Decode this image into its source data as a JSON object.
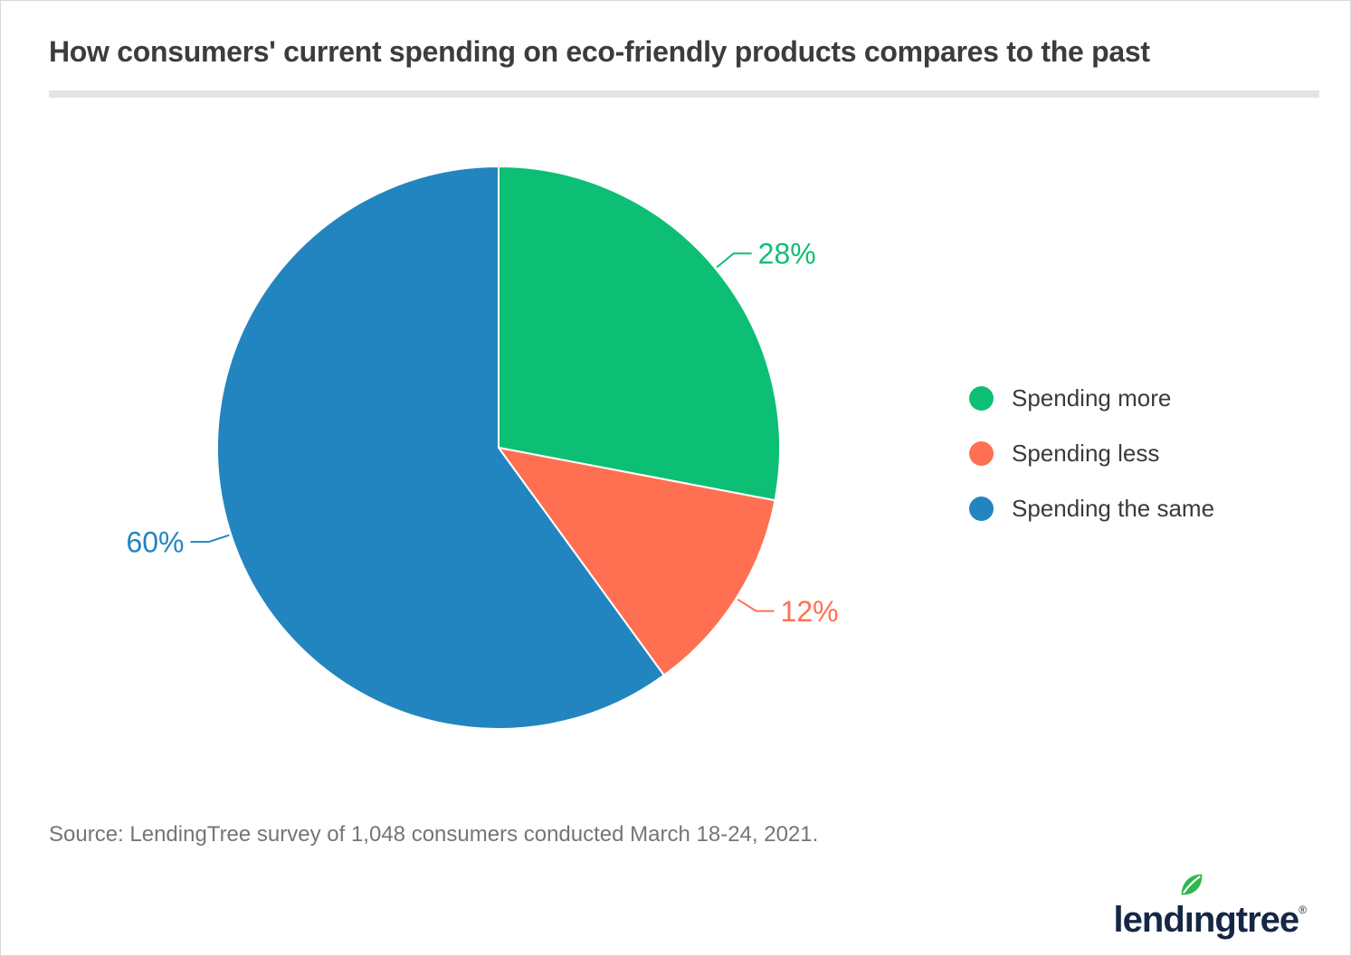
{
  "title": "How consumers' current spending on eco-friendly products compares to the past",
  "source": "Source: LendingTree survey of 1,048 consumers conducted March 18-24, 2021.",
  "logo": {
    "pre": "lend",
    "i": "ı",
    "post": "ngtree",
    "reg": "®"
  },
  "chart_data": {
    "type": "pie",
    "title": "How consumers' current spending on eco-friendly products compares to the past",
    "series": [
      {
        "name": "Spending more",
        "value": 28,
        "label": "28%",
        "color": "#0dbf74"
      },
      {
        "name": "Spending less",
        "value": 12,
        "label": "12%",
        "color": "#ff7052"
      },
      {
        "name": "Spending the same",
        "value": 60,
        "label": "60%",
        "color": "#2285c0"
      }
    ],
    "start_angle_deg": 0,
    "direction": "clockwise",
    "legend_position": "right",
    "slice_border_color": "#ffffff"
  }
}
